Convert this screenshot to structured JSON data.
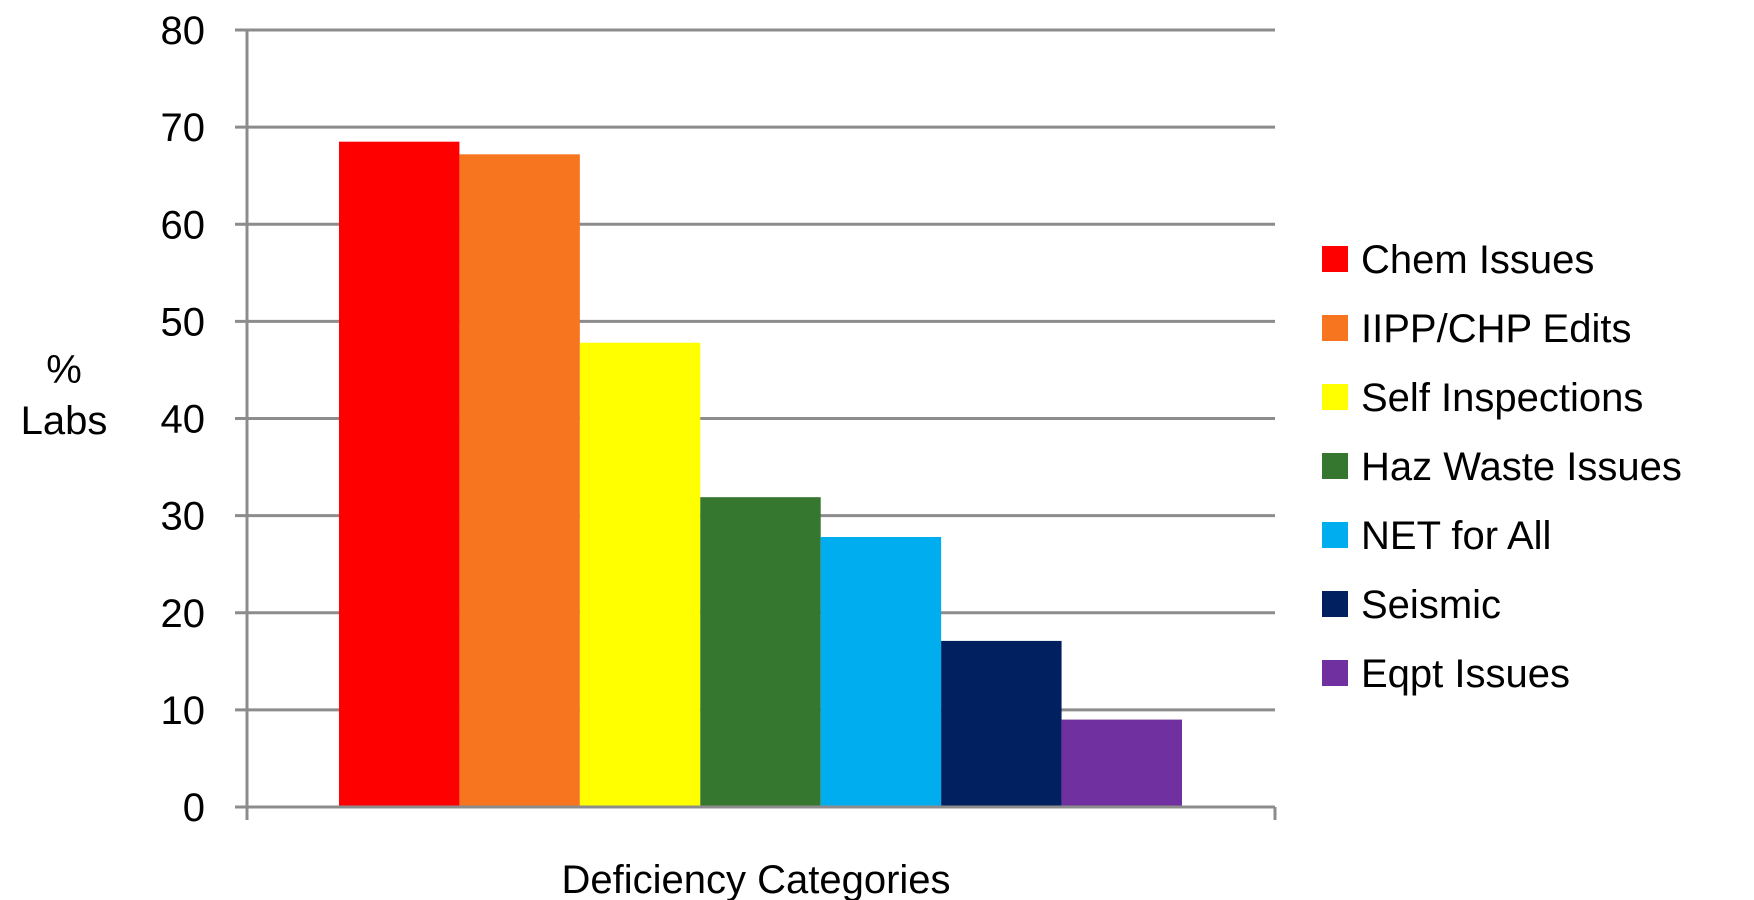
{
  "chart_data": {
    "type": "bar",
    "title": "",
    "xlabel": "Deficiency Categories",
    "ylabel": [
      "%",
      "Labs"
    ],
    "ylim": [
      0,
      80
    ],
    "yticks": [
      0,
      10,
      20,
      30,
      40,
      50,
      60,
      70,
      80
    ],
    "grid": true,
    "legend_position": "right",
    "series": [
      {
        "name": "Chem Issues",
        "value": 68.5,
        "color": "#FF0000"
      },
      {
        "name": "IIPP/CHP Edits",
        "value": 67.2,
        "color": "#F87520"
      },
      {
        "name": "Self Inspections",
        "value": 47.8,
        "color": "#FFFF00"
      },
      {
        "name": "Haz Waste Issues",
        "value": 31.9,
        "color": "#367730"
      },
      {
        "name": "NET for All",
        "value": 27.8,
        "color": "#00AEEF"
      },
      {
        "name": "Seismic",
        "value": 17.1,
        "color": "#002060"
      },
      {
        "name": "Eqpt Issues",
        "value": 9.0,
        "color": "#7030A0"
      }
    ]
  }
}
